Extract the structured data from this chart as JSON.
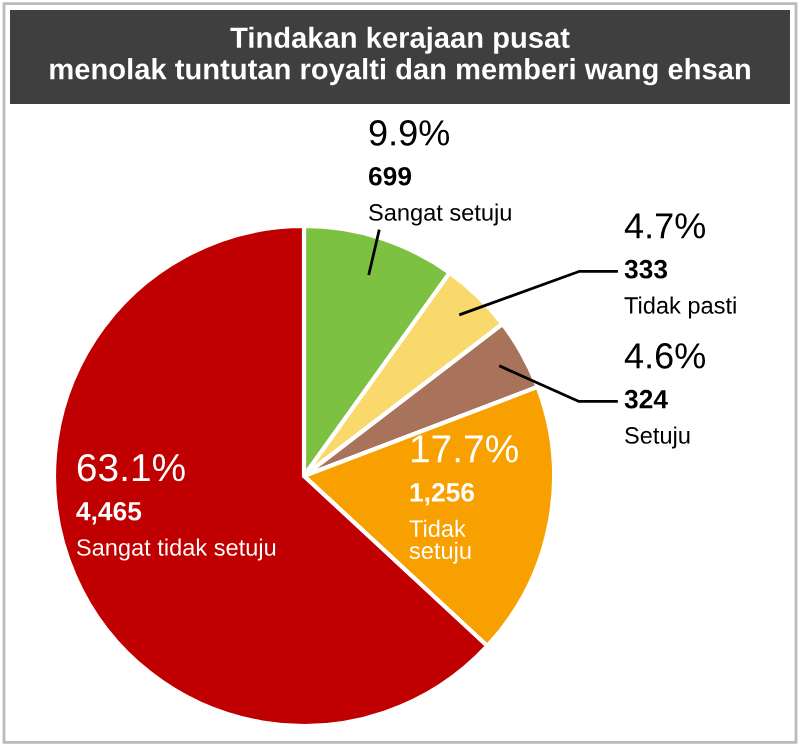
{
  "chart_data": {
    "type": "pie",
    "title": "Tindakan kerajaan pusat\nmenolak tuntutan royalti dan memberi wang ehsan",
    "categories": [
      "Sangat setuju",
      "Tidak pasti",
      "Setuju",
      "Tidak setuju",
      "Sangat tidak setuju"
    ],
    "values": [
      9.9,
      4.7,
      4.6,
      17.7,
      63.1
    ],
    "value_labels": [
      "9.9%",
      "4.7%",
      "4.6%",
      "17.7%",
      "63.1%"
    ],
    "annotations": [
      {
        "text": "699",
        "x": "Sangat setuju"
      },
      {
        "text": "333",
        "x": "Tidak pasti"
      },
      {
        "text": "324",
        "x": "Setuju"
      },
      {
        "text": "1,256",
        "x": "Tidak setuju"
      },
      {
        "text": "4,465",
        "x": "Sangat tidak setuju"
      }
    ],
    "colors": [
      "#7dc142",
      "#f9d96b",
      "#a8735a",
      "#f7a000",
      "#c00000"
    ],
    "legend": false
  }
}
